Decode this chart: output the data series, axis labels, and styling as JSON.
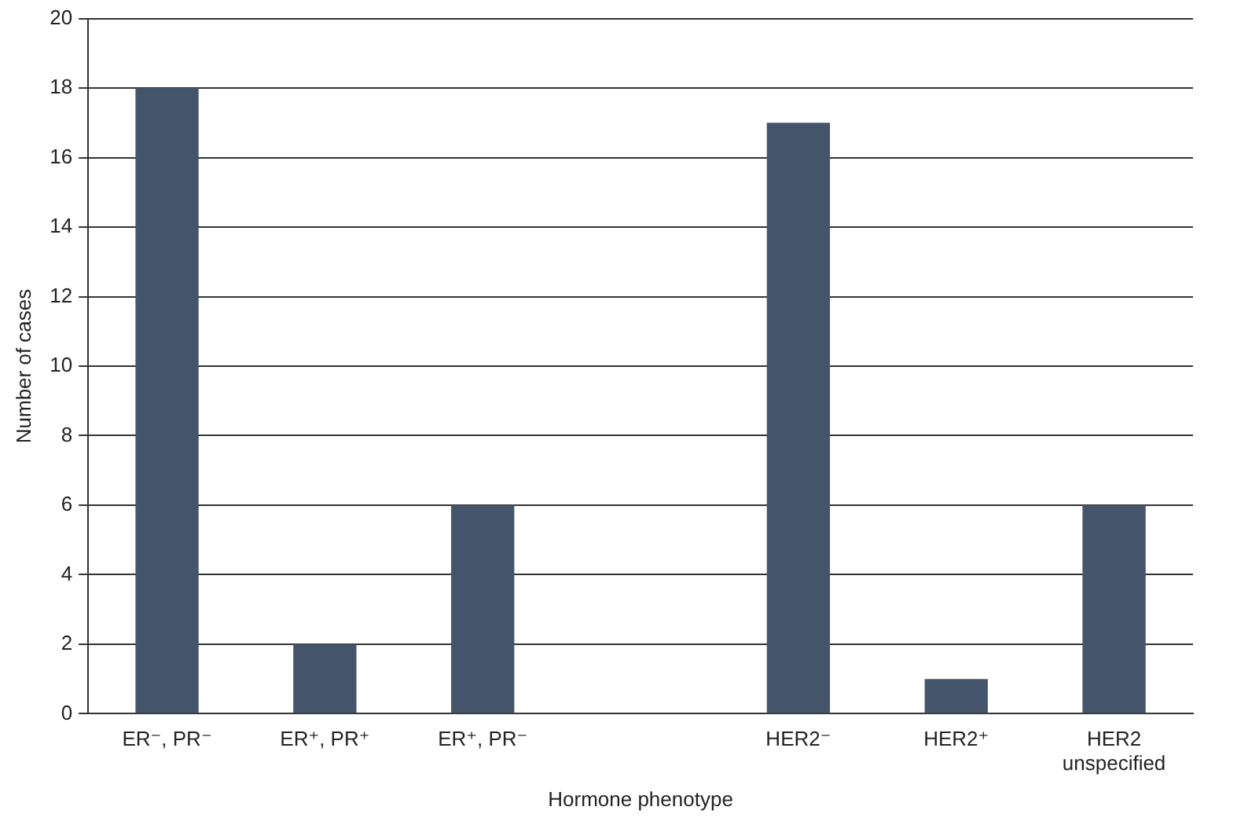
{
  "chart_data": {
    "type": "bar",
    "xlabel": "Hormone phenotype",
    "ylabel": "Number of cases",
    "categories": [
      "ER⁻, PR⁻",
      "ER⁺, PR⁺",
      "ER⁺, PR⁻",
      null,
      "HER2⁻",
      "HER2⁺",
      "HER2 unspecified"
    ],
    "values": [
      18,
      2,
      6,
      null,
      17,
      1,
      6
    ],
    "color": "#44546a",
    "ylim": [
      0,
      20
    ],
    "yticks": [
      0,
      2,
      4,
      6,
      8,
      10,
      12,
      14,
      16,
      18,
      20
    ],
    "grid": "y",
    "legend": false
  }
}
